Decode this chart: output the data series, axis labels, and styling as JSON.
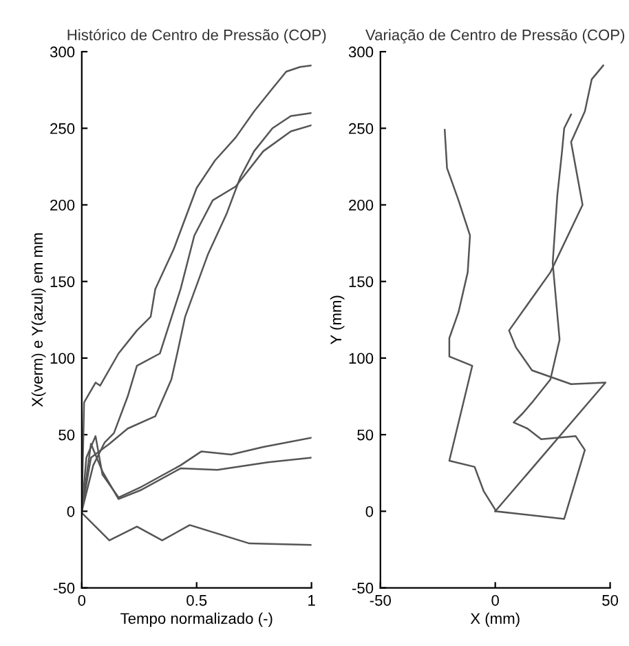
{
  "chart_data": [
    {
      "type": "line",
      "title": "Histórico de Centro de Pressão (COP)",
      "xlabel": "Tempo normalizado (-)",
      "ylabel": "X(verm) e Y(azul) em mm",
      "xlim": [
        0,
        1
      ],
      "ylim": [
        -50,
        300
      ],
      "xticks": [
        0,
        0.5,
        1
      ],
      "yticks": [
        -50,
        0,
        50,
        100,
        150,
        200,
        250,
        300
      ],
      "grid": false,
      "legend": false,
      "series": [
        {
          "color": "#555555",
          "x": [
            0,
            0.01,
            0.06,
            0.08,
            0.16,
            0.24,
            0.3,
            0.32,
            0.4,
            0.5,
            0.58,
            0.67,
            0.75,
            0.83,
            0.89,
            0.95,
            1
          ],
          "values": [
            0,
            71,
            84,
            82,
            103,
            118,
            127,
            145,
            171,
            211,
            229,
            244,
            261,
            276,
            287,
            290,
            291
          ]
        },
        {
          "color": "#555555",
          "x": [
            0,
            0.05,
            0.1,
            0.14,
            0.2,
            0.24,
            0.34,
            0.43,
            0.49,
            0.57,
            0.67,
            0.79,
            0.91,
            1
          ],
          "values": [
            0,
            30,
            45,
            51,
            75,
            95,
            103,
            145,
            180,
            203,
            212,
            235,
            248,
            252
          ]
        },
        {
          "color": "#555555",
          "x": [
            0,
            0.04,
            0.12,
            0.2,
            0.32,
            0.39,
            0.42,
            0.45,
            0.55,
            0.63,
            0.69,
            0.75,
            0.83,
            0.91,
            1
          ],
          "values": [
            0,
            35,
            44,
            54,
            62,
            86,
            106,
            127,
            168,
            194,
            218,
            235,
            250,
            258,
            260
          ]
        },
        {
          "color": "#555555",
          "x": [
            0,
            0.02,
            0.06,
            0.09,
            0.16,
            0.26,
            0.43,
            0.52,
            0.65,
            0.79,
            1
          ],
          "values": [
            0,
            35,
            49,
            24,
            9,
            16,
            30,
            39,
            37,
            42,
            48
          ]
        },
        {
          "color": "#555555",
          "x": [
            0,
            0.04,
            0.09,
            0.16,
            0.26,
            0.43,
            0.59,
            0.81,
            1
          ],
          "values": [
            0,
            44,
            26,
            8,
            14,
            28,
            27,
            32,
            35
          ]
        },
        {
          "color": "#555555",
          "x": [
            0,
            0.12,
            0.24,
            0.35,
            0.47,
            0.73,
            1
          ],
          "values": [
            -1,
            -19,
            -10,
            -19,
            -9,
            -21,
            -22
          ]
        }
      ]
    },
    {
      "type": "line",
      "title": "Variação de Centro de Pressão (COP)",
      "xlabel": "X (mm)",
      "ylabel": "Y (mm)",
      "xlim": [
        -50,
        50
      ],
      "ylim": [
        -50,
        300
      ],
      "xticks": [
        -50,
        0,
        50
      ],
      "yticks": [
        -50,
        0,
        50,
        100,
        150,
        200,
        250,
        300
      ],
      "grid": false,
      "legend": false,
      "series": [
        {
          "color": "#555555",
          "x": [
            0,
            -5,
            -9,
            -20,
            -10,
            -20,
            -20,
            -16,
            -12,
            -11,
            -16,
            -21,
            -22
          ],
          "values": [
            1,
            13,
            29,
            33,
            95,
            101,
            113,
            130,
            156,
            180,
            203,
            224,
            249
          ]
        },
        {
          "color": "#555555",
          "x": [
            0,
            48,
            33,
            16,
            9,
            6,
            24,
            38,
            33,
            39,
            42,
            47
          ],
          "values": [
            0,
            84,
            83,
            92,
            107,
            118,
            156,
            200,
            241,
            261,
            282,
            291
          ]
        },
        {
          "color": "#555555",
          "x": [
            0,
            30,
            39,
            35,
            20,
            14,
            8,
            12,
            16,
            24,
            28,
            25,
            27,
            29,
            30,
            33
          ],
          "values": [
            0,
            -5,
            40,
            49,
            47,
            54,
            58,
            64,
            71,
            86,
            112,
            162,
            206,
            234,
            250,
            259
          ]
        }
      ]
    }
  ]
}
